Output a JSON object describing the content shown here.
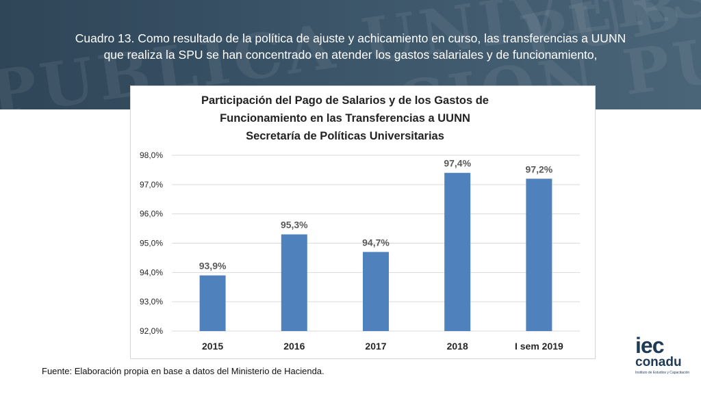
{
  "header": {
    "line1": "Cuadro 13. Como resultado de la política de ajuste y achicamiento en curso, las transferencias a UUNN",
    "line2": "que realiza la SPU se han concentrado en atender los gastos  salariales y de funcionamiento,"
  },
  "chart_data": {
    "type": "bar",
    "title_lines": [
      "Participación del Pago de Salarios y de los Gastos de",
      "Funcionamiento en las Transferencias a UUNN",
      "Secretaría de Políticas Universitarias"
    ],
    "categories": [
      "2015",
      "2016",
      "2017",
      "2018",
      "I sem 2019"
    ],
    "values": [
      93.9,
      95.3,
      94.7,
      97.4,
      97.2
    ],
    "value_labels": [
      "93,9%",
      "95,3%",
      "94,7%",
      "97,4%",
      "97,2%"
    ],
    "ylim": [
      92,
      98
    ],
    "yticks": [
      92,
      93,
      94,
      95,
      96,
      97,
      98
    ],
    "ytick_labels": [
      "92,0%",
      "93,0%",
      "94,0%",
      "95,0%",
      "96,0%",
      "97,0%",
      "98,0%"
    ],
    "grid": true,
    "bar_color": "#4f81bd",
    "xlabel": "",
    "ylabel": ""
  },
  "footer": {
    "source": "Fuente: Elaboración propia en base a datos del Ministerio de Hacienda."
  },
  "logo": {
    "brand_top": "iec",
    "brand_bottom": "conadu",
    "tagline": "Instituto de Estudios y Capacitación"
  }
}
